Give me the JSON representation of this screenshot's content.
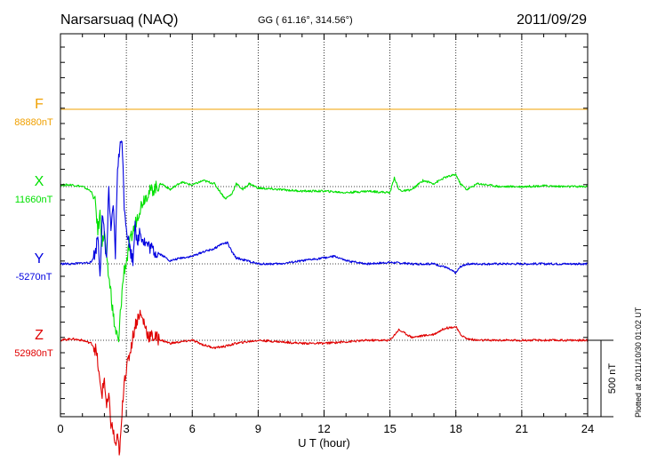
{
  "header": {
    "title": "Narsarsuaq (NAQ)",
    "coords": "GG ( 61.16°, 314.56°)",
    "date": "2011/09/29"
  },
  "plotted_note": "Plotted at 2011/10/30 01:02 UT",
  "scale_label": "500 nT",
  "chart_data": {
    "type": "line",
    "xlabel": "U T (hour)",
    "xlim": [
      0,
      24
    ],
    "xticks": [
      "0",
      "3",
      "6",
      "9",
      "12",
      "15",
      "18",
      "21",
      "24"
    ],
    "series": [
      {
        "name": "F",
        "baseline_label": "88880nT",
        "color": "#f0a000",
        "x": [
          0,
          24
        ],
        "y": [
          0,
          0
        ]
      },
      {
        "name": "X",
        "baseline_label": "11660nT",
        "color": "#00e000",
        "x": [
          0,
          0.5,
          1.0,
          1.4,
          1.6,
          1.7,
          1.8,
          1.9,
          2.0,
          2.1,
          2.2,
          2.3,
          2.4,
          2.5,
          2.6,
          2.65,
          2.7,
          2.8,
          2.9,
          3.0,
          3.2,
          3.4,
          3.6,
          3.8,
          4.0,
          4.3,
          4.6,
          5.0,
          5.5,
          6.0,
          6.5,
          7.0,
          7.5,
          7.8,
          8.0,
          8.3,
          8.6,
          9.0,
          10,
          11,
          12,
          13,
          14,
          15,
          15.2,
          15.4,
          15.6,
          16,
          16.5,
          17,
          17.5,
          18,
          18.2,
          18.5,
          19,
          19.5,
          20,
          21,
          22,
          23,
          24
        ],
        "y": [
          10,
          12,
          0,
          -30,
          -120,
          -300,
          -180,
          -380,
          -300,
          -500,
          -600,
          -700,
          -850,
          -950,
          -1000,
          -1050,
          -900,
          -700,
          -550,
          -500,
          -350,
          -250,
          -150,
          -80,
          -40,
          -10,
          20,
          -20,
          30,
          10,
          40,
          20,
          -80,
          -50,
          20,
          -20,
          20,
          -10,
          -20,
          -30,
          -30,
          -40,
          -30,
          -40,
          60,
          -20,
          -30,
          -20,
          40,
          20,
          60,
          80,
          20,
          -20,
          20,
          10,
          0,
          0,
          5,
          0,
          0
        ]
      },
      {
        "name": "Y",
        "baseline_label": "-5270nT",
        "color": "#0000e0",
        "x": [
          0,
          0.5,
          1.0,
          1.4,
          1.6,
          1.7,
          1.8,
          1.9,
          2.0,
          2.1,
          2.2,
          2.3,
          2.4,
          2.5,
          2.6,
          2.7,
          2.8,
          2.9,
          3.0,
          3.1,
          3.2,
          3.3,
          3.4,
          3.5,
          3.6,
          3.8,
          4.0,
          4.3,
          4.6,
          5.0,
          5.5,
          6.0,
          6.5,
          7.0,
          7.3,
          7.6,
          7.8,
          8.0,
          8.5,
          9.0,
          10,
          11,
          12,
          12.5,
          13,
          14,
          15,
          16,
          17,
          17.5,
          18,
          18.2,
          18.5,
          19,
          20,
          21,
          22,
          23,
          24
        ],
        "y": [
          0,
          0,
          5,
          10,
          80,
          200,
          -60,
          300,
          200,
          20,
          500,
          180,
          400,
          60,
          650,
          750,
          850,
          400,
          250,
          150,
          80,
          20,
          300,
          100,
          220,
          150,
          120,
          80,
          60,
          20,
          40,
          50,
          80,
          100,
          130,
          140,
          80,
          40,
          20,
          0,
          0,
          20,
          40,
          50,
          20,
          0,
          10,
          0,
          0,
          -20,
          -60,
          -20,
          0,
          0,
          0,
          0,
          0,
          0,
          0
        ]
      },
      {
        "name": "Z",
        "baseline_label": "52980nT",
        "color": "#e00000",
        "x": [
          0,
          0.5,
          1.0,
          1.4,
          1.6,
          1.7,
          1.8,
          1.9,
          2.0,
          2.1,
          2.2,
          2.3,
          2.4,
          2.5,
          2.6,
          2.7,
          2.8,
          2.9,
          3.0,
          3.2,
          3.4,
          3.6,
          3.8,
          4.0,
          4.3,
          4.6,
          5.0,
          5.5,
          6.0,
          6.5,
          7.0,
          7.5,
          8.0,
          8.5,
          9.0,
          10,
          11,
          12,
          13,
          14,
          15,
          15.4,
          16,
          17,
          17.5,
          18,
          18.2,
          18.5,
          19,
          20,
          21,
          22,
          23,
          24
        ],
        "y": [
          0,
          10,
          0,
          -20,
          -60,
          -150,
          -300,
          -350,
          -250,
          -450,
          -380,
          -550,
          -600,
          -700,
          -650,
          -750,
          -500,
          -250,
          -200,
          -50,
          100,
          180,
          120,
          30,
          20,
          0,
          -20,
          -10,
          0,
          -30,
          -50,
          -40,
          -20,
          -10,
          0,
          -10,
          -20,
          -20,
          -10,
          0,
          0,
          70,
          20,
          40,
          80,
          90,
          40,
          10,
          0,
          0,
          0,
          0,
          0,
          0
        ]
      }
    ]
  }
}
